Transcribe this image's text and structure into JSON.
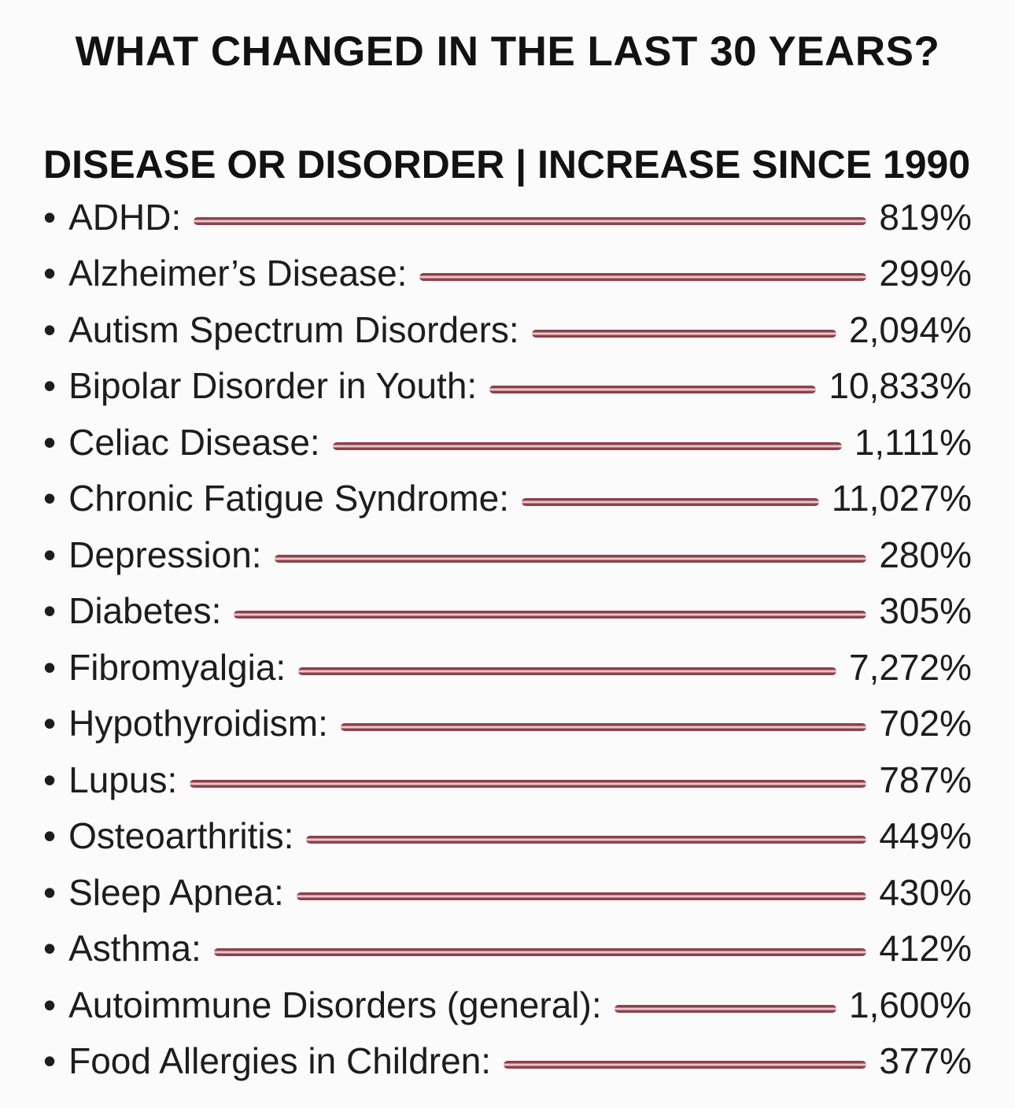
{
  "page": {
    "title": "WHAT CHANGED IN THE LAST 30 YEARS?",
    "subtitle": "DISEASE OR DISORDER | INCREASE SINCE 1990",
    "bullet": "•"
  },
  "colors": {
    "background": "#fcfbfb",
    "text": "#1d1d1d",
    "heading_text": "#121212",
    "leader_line_dark": "#8d414b",
    "leader_line_light": "#e8c6cb"
  },
  "chart_data": {
    "type": "table",
    "title": "WHAT CHANGED IN THE LAST 30 YEARS?",
    "columns": [
      "DISEASE OR DISORDER",
      "INCREASE SINCE 1990"
    ],
    "rows": [
      {
        "label": "ADHD:",
        "value": "819%"
      },
      {
        "label": "Alzheimer’s Disease:",
        "value": "299%"
      },
      {
        "label": "Autism Spectrum Disorders:",
        "value": "2,094%"
      },
      {
        "label": "Bipolar Disorder in Youth:",
        "value": "10,833%"
      },
      {
        "label": "Celiac Disease:",
        "value": "1,111%"
      },
      {
        "label": "Chronic Fatigue Syndrome:",
        "value": "11,027%"
      },
      {
        "label": "Depression:",
        "value": "280%"
      },
      {
        "label": "Diabetes:",
        "value": "305%"
      },
      {
        "label": "Fibromyalgia:",
        "value": "7,272%"
      },
      {
        "label": "Hypothyroidism:",
        "value": "702%"
      },
      {
        "label": "Lupus:",
        "value": "787%"
      },
      {
        "label": "Osteoarthritis:",
        "value": "449%"
      },
      {
        "label": "Sleep Apnea:",
        "value": "430%"
      },
      {
        "label": "Asthma:",
        "value": "412%"
      },
      {
        "label": "Autoimmune Disorders (general):",
        "value": "1,600%"
      },
      {
        "label": "Food Allergies in Children:",
        "value": "377%"
      }
    ],
    "values_numeric": [
      819,
      299,
      2094,
      10833,
      1111,
      11027,
      280,
      305,
      7272,
      702,
      787,
      449,
      430,
      412,
      1600,
      377
    ],
    "unit": "percent increase",
    "layout": "leader-line list, labels left-aligned, values right-aligned"
  }
}
